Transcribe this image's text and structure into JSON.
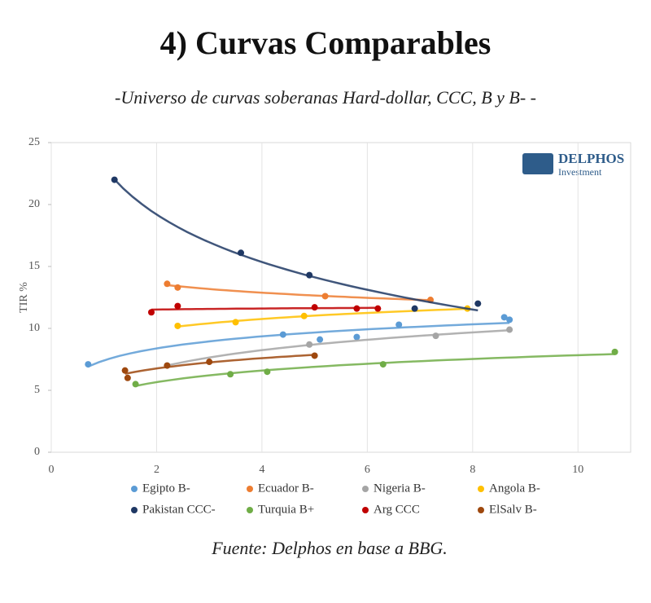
{
  "chart_data": {
    "type": "scatter",
    "title": "4) Curvas Comparables",
    "subtitle": "-Universo de curvas soberanas Hard-dollar, CCC, B y B- -",
    "y_label": "TIR %",
    "logo": {
      "name": "DELPHOS",
      "sub": "Investment"
    },
    "source": "Fuente: Delphos en base a BBG.",
    "xlim": [
      0,
      11
    ],
    "xticks": [
      0,
      2,
      4,
      6,
      8,
      10
    ],
    "ylim": [
      0,
      25
    ],
    "yticks": [
      0,
      5,
      10,
      15,
      20,
      25
    ],
    "grid": "x",
    "series": [
      {
        "name": "Egipto B-",
        "color": "#5b9bd5",
        "x": [
          0.7,
          4.4,
          5.1,
          5.8,
          6.6,
          8.6,
          8.7
        ],
        "values": [
          7.1,
          9.5,
          9.1,
          9.3,
          10.3,
          10.9,
          10.7
        ]
      },
      {
        "name": "Ecuador B-",
        "color": "#ed7d31",
        "x": [
          2.2,
          2.4,
          5.2,
          7.2
        ],
        "values": [
          13.6,
          13.3,
          12.6,
          12.3
        ]
      },
      {
        "name": "Nigeria B-",
        "color": "#a5a5a5",
        "x": [
          2.2,
          4.9,
          7.3,
          8.7
        ],
        "values": [
          7.0,
          8.7,
          9.4,
          9.9
        ]
      },
      {
        "name": "Angola B-",
        "color": "#ffc000",
        "x": [
          2.4,
          3.5,
          4.8,
          7.9
        ],
        "values": [
          10.2,
          10.5,
          11.0,
          11.6
        ]
      },
      {
        "name": "Pakistan CCC-",
        "color": "#1f3864",
        "x": [
          1.2,
          3.6,
          4.9,
          6.9,
          8.1
        ],
        "values": [
          22.0,
          16.1,
          14.3,
          11.6,
          12.0
        ]
      },
      {
        "name": "Turquia B+",
        "color": "#70ad47",
        "x": [
          1.6,
          3.4,
          4.1,
          6.3,
          10.7
        ],
        "values": [
          5.5,
          6.3,
          6.5,
          7.1,
          8.1
        ]
      },
      {
        "name": "Arg CCC",
        "color": "#c00000",
        "x": [
          1.9,
          2.4,
          5.0,
          5.8,
          6.2
        ],
        "values": [
          11.3,
          11.8,
          11.7,
          11.6,
          11.6
        ]
      },
      {
        "name": "ElSalv B-",
        "color": "#9e480e",
        "x": [
          1.4,
          1.45,
          2.2,
          3.0,
          5.0
        ],
        "values": [
          6.6,
          6.0,
          7.0,
          7.3,
          7.8
        ]
      }
    ]
  }
}
